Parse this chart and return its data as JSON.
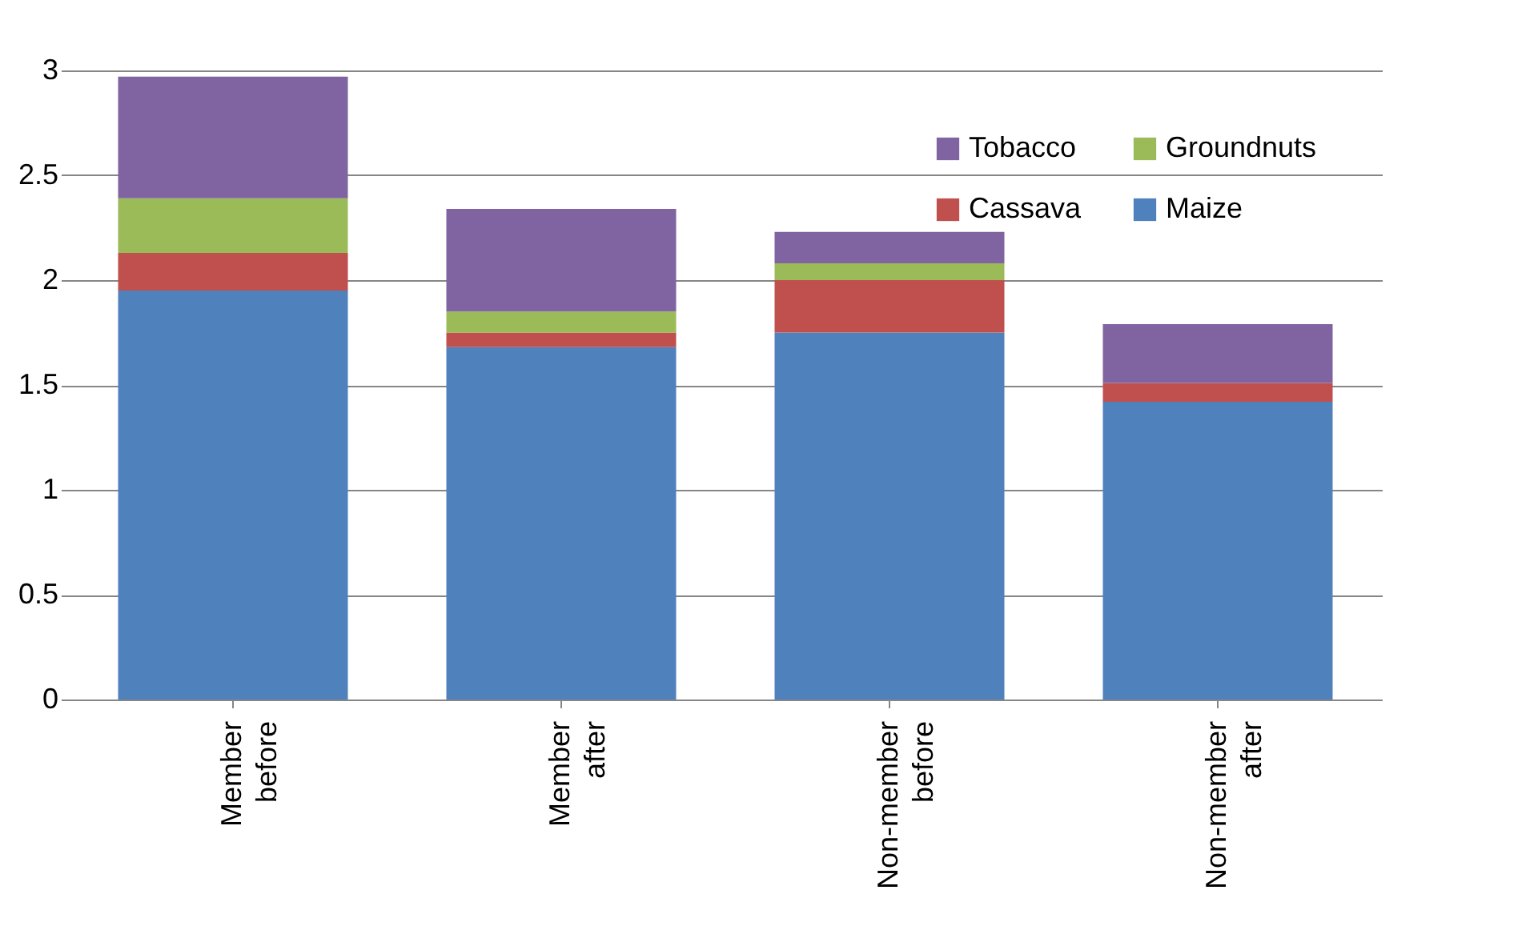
{
  "chart_data": {
    "type": "bar",
    "stacked": true,
    "categories": [
      "Member before",
      "Member after",
      "Non-member before",
      "Non-member after"
    ],
    "series": [
      {
        "name": "Maize",
        "color": "#4f81bd",
        "values": [
          1.95,
          1.68,
          1.75,
          1.42
        ]
      },
      {
        "name": "Cassava",
        "color": "#c0504d",
        "values": [
          0.18,
          0.07,
          0.25,
          0.09
        ]
      },
      {
        "name": "Groundnuts",
        "color": "#9bbb59",
        "values": [
          0.26,
          0.1,
          0.08,
          0
        ]
      },
      {
        "name": "Tobacco",
        "color": "#8064a2",
        "values": [
          0.58,
          0.49,
          0.15,
          0.28
        ]
      }
    ],
    "ylim": [
      0,
      3
    ],
    "yticks": [
      0,
      0.5,
      1,
      1.5,
      2,
      2.5,
      3
    ],
    "grid": "y",
    "legend": "top right"
  }
}
